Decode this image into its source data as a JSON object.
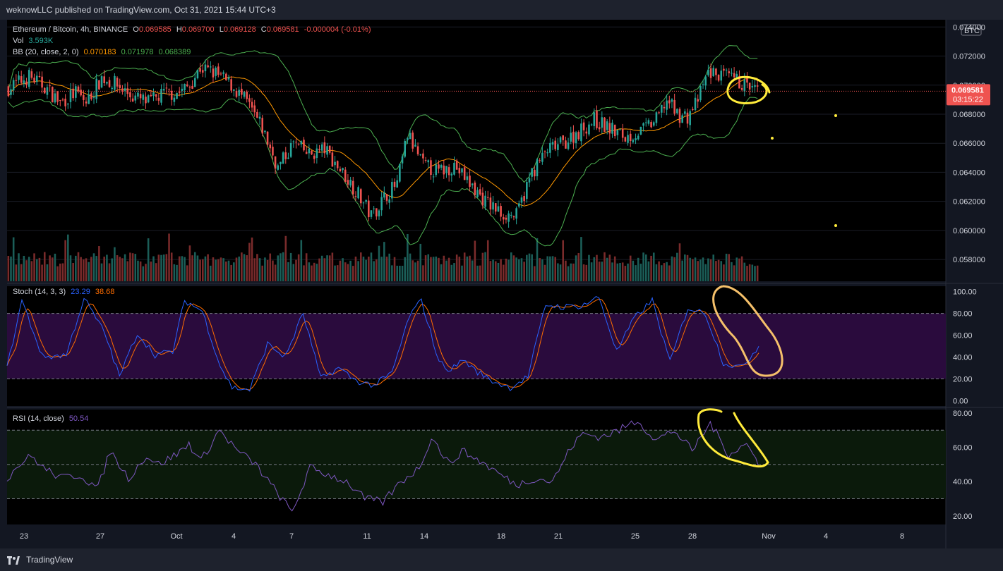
{
  "header": {
    "text": "weknowLLC published on TradingView.com, Oct 31, 2021 15:44 UTC+3"
  },
  "footer": {
    "brand": "TradingView"
  },
  "colors": {
    "bg": "#131722",
    "panel": "#000000",
    "grid": "#1a1d27",
    "axis_text": "#d1d4dc",
    "up": "#26a69a",
    "down": "#ef5350",
    "bb_basis": "#ff9800",
    "bb_band": "#4caf50",
    "stoch_k": "#2962ff",
    "stoch_d": "#ff6d00",
    "stoch_zone": "#2a0b3d",
    "rsi_line": "#7e57c2",
    "rsi_zone": "#0b1a0b",
    "annotation": "#ffeb3b",
    "last_price_bg": "#ef5350"
  },
  "legend": {
    "main": {
      "symbol": "Ethereum / Bitcoin, 4h, BINANCE",
      "o_label": "O",
      "o": "0.069585",
      "h_label": "H",
      "h": "0.069700",
      "l_label": "L",
      "l": "0.069128",
      "c_label": "C",
      "c": "0.069581",
      "change": "-0.000004 (-0.01%)"
    },
    "vol": {
      "label": "Vol",
      "value": "3.593K"
    },
    "bb": {
      "label": "BB (20, close, 2, 0)",
      "basis": "0.070183",
      "upper": "0.071978",
      "lower": "0.068389"
    },
    "stoch": {
      "label": "Stoch (14, 3, 3)",
      "k": "23.29",
      "d": "38.68"
    },
    "rsi": {
      "label": "RSI (14, close)",
      "value": "50.54"
    }
  },
  "chart_data": {
    "type": "candlestick",
    "currency_badge": "BTC",
    "last_price": {
      "value": "0.069581",
      "countdown": "03:15:22"
    },
    "price_axis": {
      "ticks": [
        "0.058000",
        "0.060000",
        "0.062000",
        "0.064000",
        "0.066000",
        "0.068000",
        "0.070000",
        "0.072000",
        "0.074000"
      ],
      "ylim": [
        0.0565,
        0.0745
      ]
    },
    "stoch_axis": {
      "ticks": [
        "0.00",
        "20.00",
        "40.00",
        "60.00",
        "80.00",
        "100.00"
      ],
      "ylim": [
        -5,
        105
      ],
      "bands": [
        20,
        80
      ]
    },
    "rsi_axis": {
      "ticks": [
        "20.00",
        "40.00",
        "60.00",
        "80.00"
      ],
      "ylim": [
        15,
        82
      ],
      "bands": [
        30,
        50,
        70
      ]
    },
    "x_axis": {
      "labels": [
        "23",
        "27",
        "Oct",
        "4",
        "7",
        "11",
        "14",
        "18",
        "21",
        "25",
        "28",
        "Nov",
        "4",
        "8"
      ]
    },
    "price_anchors": [
      [
        0,
        0.0698
      ],
      [
        8,
        0.0706
      ],
      [
        14,
        0.0699
      ],
      [
        20,
        0.0688
      ],
      [
        26,
        0.0695
      ],
      [
        30,
        0.0688
      ],
      [
        36,
        0.0705
      ],
      [
        42,
        0.07
      ],
      [
        48,
        0.0692
      ],
      [
        54,
        0.0688
      ],
      [
        60,
        0.0694
      ],
      [
        66,
        0.0695
      ],
      [
        70,
        0.07
      ],
      [
        74,
        0.0712
      ],
      [
        80,
        0.0708
      ],
      [
        86,
        0.07
      ],
      [
        92,
        0.0688
      ],
      [
        98,
        0.067
      ],
      [
        104,
        0.0643
      ],
      [
        110,
        0.066
      ],
      [
        116,
        0.0652
      ],
      [
        122,
        0.0656
      ],
      [
        128,
        0.0642
      ],
      [
        134,
        0.0628
      ],
      [
        140,
        0.061
      ],
      [
        146,
        0.0625
      ],
      [
        150,
        0.0632
      ],
      [
        154,
        0.0666
      ],
      [
        160,
        0.0645
      ],
      [
        166,
        0.064
      ],
      [
        172,
        0.0645
      ],
      [
        178,
        0.0632
      ],
      [
        184,
        0.062
      ],
      [
        190,
        0.0612
      ],
      [
        196,
        0.061
      ],
      [
        202,
        0.064
      ],
      [
        208,
        0.0655
      ],
      [
        214,
        0.066
      ],
      [
        220,
        0.0668
      ],
      [
        226,
        0.0676
      ],
      [
        232,
        0.067
      ],
      [
        238,
        0.0664
      ],
      [
        244,
        0.0668
      ],
      [
        250,
        0.0676
      ],
      [
        254,
        0.069
      ],
      [
        258,
        0.068
      ],
      [
        262,
        0.0678
      ],
      [
        266,
        0.069
      ],
      [
        270,
        0.0709
      ],
      [
        276,
        0.0706
      ],
      [
        282,
        0.0702
      ],
      [
        288,
        0.0696
      ]
    ],
    "stoch_anchors": [
      [
        0,
        30
      ],
      [
        5,
        92
      ],
      [
        12,
        40
      ],
      [
        20,
        42
      ],
      [
        26,
        94
      ],
      [
        33,
        62
      ],
      [
        38,
        22
      ],
      [
        44,
        62
      ],
      [
        50,
        42
      ],
      [
        56,
        45
      ],
      [
        60,
        92
      ],
      [
        66,
        82
      ],
      [
        72,
        32
      ],
      [
        76,
        12
      ],
      [
        82,
        10
      ],
      [
        88,
        52
      ],
      [
        94,
        40
      ],
      [
        100,
        80
      ],
      [
        106,
        20
      ],
      [
        112,
        30
      ],
      [
        118,
        18
      ],
      [
        124,
        14
      ],
      [
        130,
        25
      ],
      [
        136,
        78
      ],
      [
        140,
        92
      ],
      [
        146,
        35
      ],
      [
        150,
        28
      ],
      [
        154,
        38
      ],
      [
        158,
        28
      ],
      [
        164,
        18
      ],
      [
        170,
        12
      ],
      [
        176,
        22
      ],
      [
        182,
        88
      ],
      [
        188,
        86
      ],
      [
        194,
        87
      ],
      [
        200,
        95
      ],
      [
        206,
        45
      ],
      [
        212,
        76
      ],
      [
        218,
        92
      ],
      [
        224,
        35
      ],
      [
        230,
        85
      ],
      [
        236,
        80
      ],
      [
        242,
        35
      ],
      [
        248,
        30
      ],
      [
        254,
        50
      ]
    ],
    "rsi_anchors": [
      [
        0,
        42
      ],
      [
        4,
        50
      ],
      [
        8,
        55
      ],
      [
        12,
        48
      ],
      [
        18,
        42
      ],
      [
        24,
        44
      ],
      [
        30,
        36
      ],
      [
        34,
        58
      ],
      [
        40,
        42
      ],
      [
        46,
        55
      ],
      [
        50,
        50
      ],
      [
        56,
        56
      ],
      [
        60,
        62
      ],
      [
        64,
        52
      ],
      [
        70,
        70
      ],
      [
        76,
        58
      ],
      [
        82,
        50
      ],
      [
        88,
        36
      ],
      [
        94,
        22
      ],
      [
        100,
        48
      ],
      [
        106,
        44
      ],
      [
        112,
        40
      ],
      [
        118,
        30
      ],
      [
        124,
        28
      ],
      [
        130,
        40
      ],
      [
        136,
        48
      ],
      [
        140,
        66
      ],
      [
        146,
        50
      ],
      [
        150,
        58
      ],
      [
        156,
        52
      ],
      [
        162,
        45
      ],
      [
        168,
        38
      ],
      [
        174,
        42
      ],
      [
        180,
        40
      ],
      [
        186,
        60
      ],
      [
        190,
        68
      ],
      [
        196,
        66
      ],
      [
        202,
        70
      ],
      [
        208,
        76
      ],
      [
        214,
        64
      ],
      [
        220,
        70
      ],
      [
        226,
        58
      ],
      [
        232,
        74
      ],
      [
        238,
        56
      ],
      [
        244,
        62
      ],
      [
        248,
        50
      ]
    ]
  }
}
